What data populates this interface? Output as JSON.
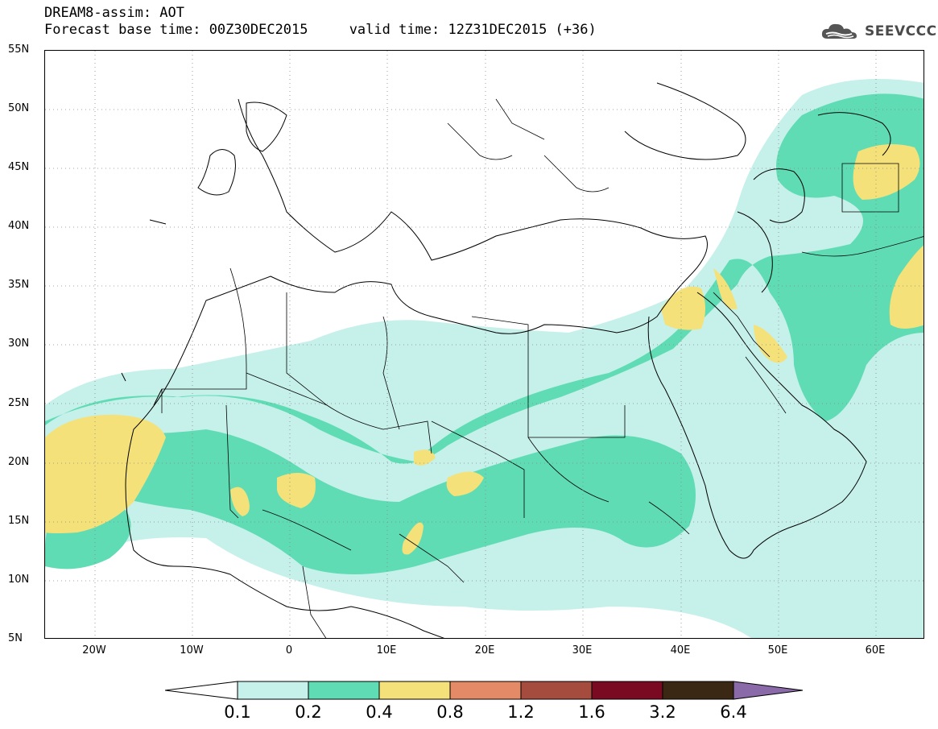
{
  "header": {
    "title": "DREAM8-assim: AOT",
    "subtitle": "Forecast base time: 00Z30DEC2015     valid time: 12Z31DEC2015 (+36)"
  },
  "logo": {
    "text": "SEEVCCC",
    "icon": "cloud-icon"
  },
  "map": {
    "lon_range": [
      -25,
      65
    ],
    "lat_range": [
      5,
      55
    ],
    "lat_labels": [
      "55N",
      "50N",
      "45N",
      "40N",
      "35N",
      "30N",
      "25N",
      "20N",
      "15N",
      "10N",
      "5N"
    ],
    "lon_labels": [
      "20W",
      "10W",
      "0",
      "10E",
      "20E",
      "30E",
      "40E",
      "50E",
      "60E"
    ],
    "grid": "dotted"
  },
  "legend": {
    "labels": [
      "0.1",
      "0.2",
      "0.4",
      "0.8",
      "1.2",
      "1.6",
      "3.2",
      "6.4"
    ],
    "colors": {
      "below": "#ffffff",
      "b1": "#c6f0ea",
      "b2": "#5fdcb4",
      "b3": "#f5e17a",
      "b4": "#e48a66",
      "b5": "#a64c3e",
      "b6": "#7a0a22",
      "b7": "#3a2814",
      "above": "#8a6aa8"
    }
  }
}
